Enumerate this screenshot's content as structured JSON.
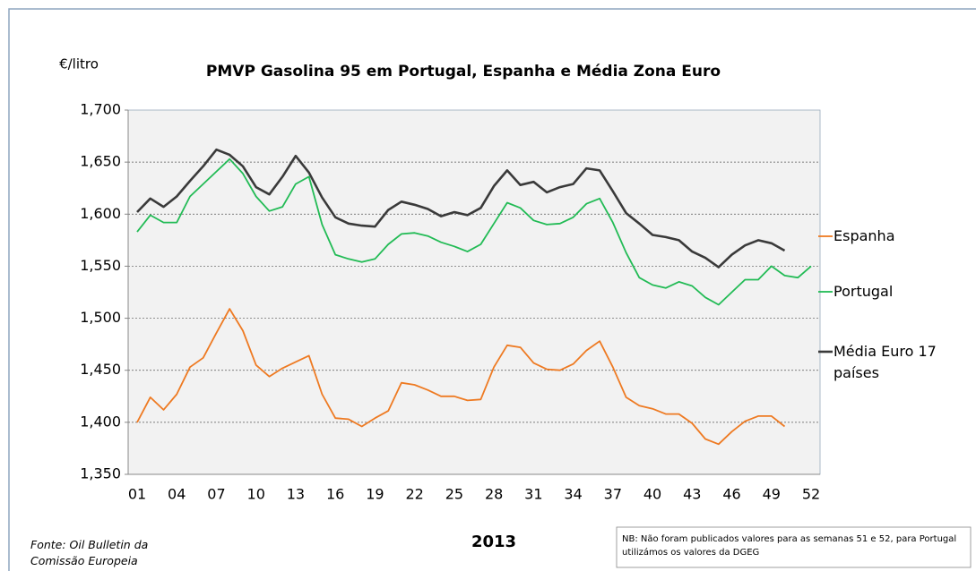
{
  "chart_data": {
    "type": "line",
    "title": "PMVP Gasolina 95 em Portugal, Espanha e Média Zona Euro",
    "y_label": "€/litro",
    "x_label": "2013",
    "source": "Fonte: Oil Bulletin da Comissão Europeia",
    "note": "NB: Não foram publicados valores para as semanas 51 e 52, para Portugal utilizámos os valores da DGEG",
    "categories": [
      "01",
      null,
      null,
      "04",
      null,
      null,
      "07",
      null,
      null,
      "10",
      null,
      null,
      "13",
      null,
      null,
      "16",
      null,
      null,
      "19",
      null,
      null,
      "22",
      null,
      null,
      "25",
      null,
      null,
      "28",
      null,
      null,
      "31",
      null,
      null,
      "34",
      null,
      null,
      "37",
      null,
      null,
      "40",
      null,
      null,
      "43",
      null,
      null,
      "46",
      null,
      null,
      "49",
      null,
      null,
      "52"
    ],
    "ylim": [
      1.35,
      1.7
    ],
    "yticks": [
      {
        "value": 1.35,
        "label": "1,350"
      },
      {
        "value": 1.4,
        "label": "1,400"
      },
      {
        "value": 1.45,
        "label": "1,450"
      },
      {
        "value": 1.5,
        "label": "1,500"
      },
      {
        "value": 1.55,
        "label": "1,550"
      },
      {
        "value": 1.6,
        "label": "1,600"
      },
      {
        "value": 1.65,
        "label": "1,650"
      },
      {
        "value": 1.7,
        "label": "1,700"
      }
    ],
    "grid": true,
    "legend": "right",
    "series": [
      {
        "name": "Espanha",
        "color": "#ee7a22",
        "values": [
          1.4,
          1.424,
          1.412,
          1.427,
          1.453,
          1.462,
          1.486,
          1.509,
          1.488,
          1.455,
          1.444,
          1.452,
          1.458,
          1.464,
          1.427,
          1.404,
          1.403,
          1.396,
          1.404,
          1.411,
          1.438,
          1.436,
          1.431,
          1.425,
          1.425,
          1.421,
          1.422,
          1.453,
          1.474,
          1.472,
          1.457,
          1.451,
          1.45,
          1.456,
          1.469,
          1.478,
          1.453,
          1.424,
          1.416,
          1.413,
          1.408,
          1.408,
          1.399,
          1.384,
          1.379,
          1.391,
          1.401,
          1.406,
          1.406,
          1.396,
          null,
          null
        ]
      },
      {
        "name": "Portugal",
        "color": "#22bb55",
        "values": [
          1.583,
          1.599,
          1.592,
          1.592,
          1.617,
          1.629,
          1.641,
          1.653,
          1.639,
          1.617,
          1.603,
          1.607,
          1.629,
          1.636,
          1.59,
          1.561,
          1.557,
          1.554,
          1.557,
          1.571,
          1.581,
          1.582,
          1.579,
          1.573,
          1.569,
          1.564,
          1.571,
          1.591,
          1.611,
          1.606,
          1.594,
          1.59,
          1.591,
          1.597,
          1.61,
          1.615,
          1.592,
          1.563,
          1.539,
          1.532,
          1.529,
          1.535,
          1.531,
          1.52,
          1.513,
          1.525,
          1.537,
          1.537,
          1.55,
          1.541,
          1.539,
          1.55
        ]
      },
      {
        "name": "Média Euro 17 países",
        "color": "#3a3a3a",
        "values": [
          1.602,
          1.615,
          1.607,
          1.617,
          1.632,
          1.646,
          1.662,
          1.657,
          1.646,
          1.626,
          1.619,
          1.636,
          1.656,
          1.64,
          1.616,
          1.597,
          1.591,
          1.589,
          1.588,
          1.604,
          1.612,
          1.609,
          1.605,
          1.598,
          1.602,
          1.599,
          1.606,
          1.627,
          1.642,
          1.628,
          1.631,
          1.621,
          1.626,
          1.629,
          1.644,
          1.642,
          1.622,
          1.601,
          1.591,
          1.58,
          1.578,
          1.575,
          1.564,
          1.558,
          1.549,
          1.561,
          1.57,
          1.575,
          1.572,
          1.565,
          null,
          null
        ]
      }
    ]
  }
}
